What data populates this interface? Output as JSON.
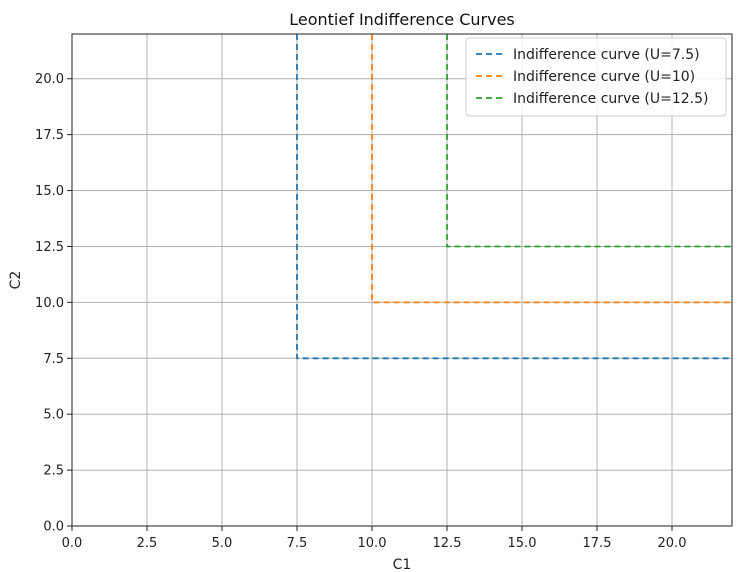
{
  "chart_data": {
    "type": "line",
    "title": "Leontief Indifference Curves",
    "xlabel": "C1",
    "ylabel": "C2",
    "xlim": [
      0,
      22
    ],
    "ylim": [
      0,
      22
    ],
    "xticks": [
      "0.0",
      "2.5",
      "5.0",
      "7.5",
      "10.0",
      "12.5",
      "15.0",
      "17.5",
      "20.0"
    ],
    "yticks": [
      "0.0",
      "2.5",
      "5.0",
      "7.5",
      "10.0",
      "12.5",
      "15.0",
      "17.5",
      "20.0"
    ],
    "grid": true,
    "legend_position": "top-right",
    "series": [
      {
        "name": "Indifference curve (U=7.5)",
        "color": "#1f77b4",
        "style": "dashed",
        "x": [
          7.5,
          7.5,
          22
        ],
        "y": [
          22,
          7.5,
          7.5
        ]
      },
      {
        "name": "Indifference curve (U=10)",
        "color": "#ff7f0e",
        "style": "dashed",
        "x": [
          10,
          10,
          22
        ],
        "y": [
          22,
          10,
          10
        ]
      },
      {
        "name": "Indifference curve (U=12.5)",
        "color": "#2ca02c",
        "style": "dashed",
        "x": [
          12.5,
          12.5,
          22
        ],
        "y": [
          22,
          12.5,
          12.5
        ]
      }
    ]
  }
}
